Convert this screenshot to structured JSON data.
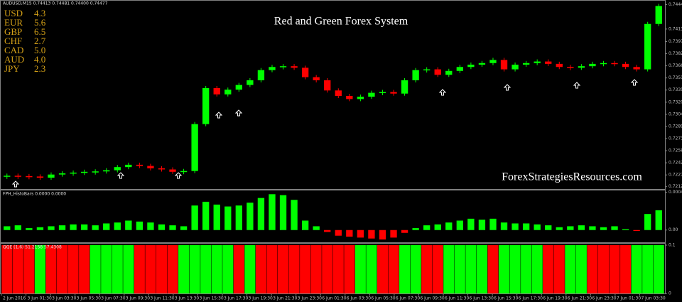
{
  "header": {
    "symbol": "AUDUSD,M15  0.74413 0.74481 0.74400 0.74477"
  },
  "strength_table": {
    "rows": [
      [
        "USD",
        "4.3"
      ],
      [
        "EUR",
        "5.6"
      ],
      [
        "GBP",
        "6.5"
      ],
      [
        "CHF",
        "2.7"
      ],
      [
        "CAD",
        "5.0"
      ],
      [
        "AUD",
        "4.0"
      ],
      [
        "JPY",
        "2.3"
      ]
    ]
  },
  "time_axis": {
    "labels": [
      "2 Jun 2016",
      "3 Jun 01:30",
      "3 Jun 03:30",
      "3 Jun 05:30",
      "3 Jun 07:30",
      "3 Jun 09:30",
      "3 Jun 11:30",
      "3 Jun 13:30",
      "3 Jun 15:30",
      "3 Jun 17:30",
      "3 Jun 19:30",
      "3 Jun 21:30",
      "3 Jun 23:30",
      "6 Jun 01:30",
      "6 Jun 03:30",
      "6 Jun 05:30",
      "6 Jun 07:30",
      "6 Jun 09:30",
      "6 Jun 11:30",
      "6 Jun 13:30",
      "6 Jun 15:30",
      "6 Jun 17:30",
      "6 Jun 19:30",
      "6 Jun 21:30",
      "6 Jun 23:30",
      "7 Jun 01:30",
      "7 Jun 03:30"
    ]
  },
  "chart_data": [
    {
      "type": "candlestick",
      "title": "Red and Green Forex System",
      "annotation": "ForexStrategiesResources.com",
      "up_color": "#00ff00",
      "down_color": "#ff0000",
      "values": [
        0.7226,
        0.72255,
        0.7225,
        0.72235,
        0.72275,
        0.7229,
        0.723,
        0.7231,
        0.72315,
        0.7233,
        0.7237,
        0.724,
        0.72385,
        0.72355,
        0.7234,
        0.7231,
        0.7232,
        0.7292,
        0.7338,
        0.733,
        0.7336,
        0.7342,
        0.7348,
        0.7361,
        0.7365,
        0.7366,
        0.7364,
        0.7352,
        0.7348,
        0.7335,
        0.7328,
        0.7324,
        0.7327,
        0.7332,
        0.7333,
        0.7331,
        0.7348,
        0.7361,
        0.7362,
        0.7355,
        0.736,
        0.7365,
        0.7368,
        0.737,
        0.7374,
        0.7362,
        0.7368,
        0.737,
        0.7372,
        0.7369,
        0.7365,
        0.7364,
        0.7366,
        0.7369,
        0.737,
        0.7369,
        0.7365,
        0.7362,
        0.742,
        0.7443
      ],
      "ylim": [
        0.7209,
        0.7447
      ],
      "yticks": [
        0.74447,
        0.74135,
        0.73975,
        {
          "value": 0.7382,
          "label": "0.73820"
        },
        0.73665,
        {
          "value": 0.7351,
          "label": "0.73510"
        },
        0.73355,
        {
          "value": 0.732,
          "label": "0.73200"
        },
        0.73045,
        {
          "value": 0.7289,
          "label": "0.72890"
        },
        0.72735,
        {
          "value": 0.7258,
          "label": "0.72580"
        },
        0.72425,
        {
          "value": 0.7227,
          "label": "0.72270"
        },
        {
          "value": 0.7212,
          "label": "0.72120"
        }
      ]
    },
    {
      "type": "bar",
      "title": "FPH_HistoBars 0.0000 0.0000",
      "pos_color": "#00ff00",
      "neg_color": "#ff0000",
      "values": [
        4e-05,
        5e-05,
        2e-05,
        3e-05,
        4e-05,
        5e-05,
        6e-05,
        6e-05,
        5e-05,
        7e-05,
        8e-05,
        0.0001,
        9e-05,
        8e-05,
        6e-05,
        5e-05,
        4e-05,
        0.00026,
        0.0003,
        0.00027,
        0.00025,
        0.00026,
        0.00029,
        0.00034,
        0.00038,
        0.00037,
        0.00032,
        0.0001,
        4e-05,
        -2e-05,
        -6e-05,
        -7e-05,
        -8e-05,
        -9e-05,
        -0.0001,
        -8e-05,
        -3e-05,
        2e-05,
        5e-05,
        6e-05,
        8e-05,
        0.0001,
        0.00012,
        0.00011,
        0.00012,
        8e-05,
        7e-05,
        7e-05,
        6e-05,
        5e-05,
        3e-05,
        4e-05,
        5e-05,
        4e-05,
        3e-05,
        4e-05,
        1e-05,
        -1e-05,
        0.00017,
        0.00021
      ],
      "ylim": [
        -0.00013,
        0.00042
      ],
      "yticks": [
        0.0004,
        {
          "value": 0,
          "label": "0.00"
        }
      ]
    },
    {
      "type": "bar",
      "title": "QQE (1,6) 51.2158 57.4308",
      "values": [
        0.1,
        0.1,
        0.1,
        0.1,
        0.1,
        0.1,
        0.1,
        0.1,
        0.1,
        0.1,
        0.1,
        0.1,
        0.1,
        0.1,
        0.1,
        0.1,
        0.1,
        0.1,
        0.1,
        0.1,
        0.1,
        0.1,
        0.1,
        0.1,
        0.1,
        0.1,
        0.1,
        0.1,
        0.1,
        0.1,
        0.1,
        0.1,
        0.1,
        0.1,
        0.1,
        0.1,
        0.1,
        0.1,
        0.1,
        0.1,
        0.1,
        0.1,
        0.1,
        0.1,
        0.1,
        0.1,
        0.1,
        0.1,
        0.1,
        0.1,
        0.1,
        0.1,
        0.1,
        0.1,
        0.1,
        0.1,
        0.1,
        0.1,
        0.1,
        0.1
      ],
      "colors": [
        "#ff0000",
        "#ff0000",
        "#ff0000",
        "#00ff00",
        "#ff0000",
        "#ff0000",
        "#ff0000",
        "#ff0000",
        "#00ff00",
        "#00ff00",
        "#00ff00",
        "#00ff00",
        "#ff0000",
        "#ff0000",
        "#ff0000",
        "#ff0000",
        "#00ff00",
        "#00ff00",
        "#00ff00",
        "#00ff00",
        "#00ff00",
        "#ff0000",
        "#00ff00",
        "#ff0000",
        "#ff0000",
        "#ff0000",
        "#ff0000",
        "#ff0000",
        "#ff0000",
        "#ff0000",
        "#ff0000",
        "#ff0000",
        "#00ff00",
        "#00ff00",
        "#ff0000",
        "#ff0000",
        "#00ff00",
        "#00ff00",
        "#ff0000",
        "#ff0000",
        "#00ff00",
        "#00ff00",
        "#00ff00",
        "#00ff00",
        "#ff0000",
        "#00ff00",
        "#00ff00",
        "#00ff00",
        "#00ff00",
        "#ff0000",
        "#ff0000",
        "#00ff00",
        "#00ff00",
        "#ff0000",
        "#ff0000",
        "#ff0000",
        "#ff0000",
        "#00ff00",
        "#00ff00",
        "#00ff00"
      ],
      "ylim": [
        0,
        0.1
      ],
      "yticks": [
        0.1,
        0
      ]
    }
  ]
}
